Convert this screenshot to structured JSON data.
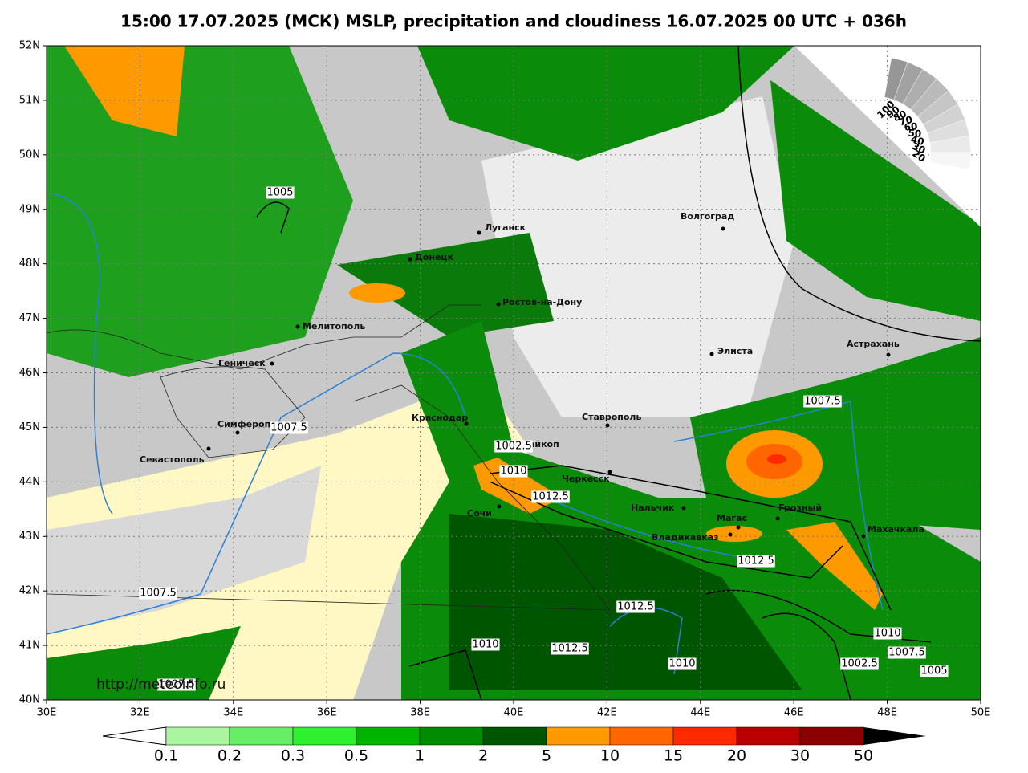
{
  "map": {
    "title": "15:00 17.07.2025 (МСК) MSLP, precipitation and cloudiness 16.07.2025 00 UTC + 036h",
    "lat_labels": [
      "52N",
      "51N",
      "50N",
      "49N",
      "48N",
      "47N",
      "46N",
      "45N",
      "44N",
      "43N",
      "42N",
      "41N",
      "40N"
    ],
    "lon_labels": [
      "30E",
      "32E",
      "34E",
      "36E",
      "38E",
      "40E",
      "42E",
      "44E",
      "46E",
      "48E",
      "50E"
    ],
    "cities": [
      "Луганск",
      "Донецк",
      "Ростов-на-Дону",
      "Мелитополь",
      "Геническ",
      "Волгоград",
      "Элиста",
      "Астрахань",
      "Краснодар",
      "Ставрополь",
      "Майкоп",
      "Симферополь",
      "Севастополь",
      "Черкесск",
      "Сочи",
      "Нальчик",
      "Магас",
      "Грозный",
      "Владикавказ",
      "Махачкала"
    ],
    "isobar_labels": [
      "1005",
      "1007.5",
      "1007.5",
      "1007.5",
      "1002.5",
      "1010",
      "1012.5",
      "1012.5",
      "1012.5",
      "1010",
      "1012.5",
      "1010",
      "1010",
      "1007.5",
      "1002.5",
      "1005",
      "1007.5"
    ],
    "cloud_scale": [
      "100",
      "90",
      "80",
      "70",
      "60",
      "50",
      "40",
      "30",
      "20"
    ],
    "colorbar": {
      "labels": [
        "0.1",
        "0.2",
        "0.3",
        "0.5",
        "1",
        "2",
        "5",
        "10",
        "15",
        "20",
        "30",
        "50"
      ],
      "colors": [
        "#aaf5a0",
        "#66ee66",
        "#2ef02e",
        "#00b400",
        "#008c00",
        "#005500",
        "#ff9900",
        "#ff6600",
        "#ff2a00",
        "#bb0000",
        "#8b0000"
      ]
    },
    "source": "http://meteoinfo.ru"
  }
}
